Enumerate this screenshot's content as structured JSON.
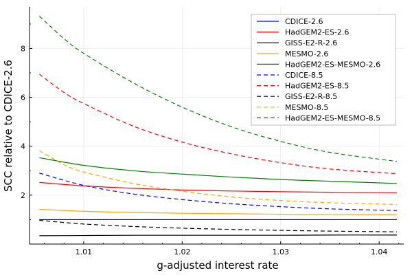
{
  "chart_data": {
    "type": "line",
    "xlabel": "g-adjusted interest rate",
    "ylabel": "SCC relative to CDICE-2.6",
    "xlim": [
      1.0045,
      1.0425
    ],
    "ylim": [
      0.0,
      9.7
    ],
    "x_ticks": [
      1.01,
      1.02,
      1.03,
      1.04
    ],
    "x_tick_labels": [
      "1.01",
      "1.02",
      "1.03",
      "1.04"
    ],
    "x_minor_ticks": [
      1.006,
      1.008,
      1.012,
      1.014,
      1.016,
      1.018,
      1.022,
      1.024,
      1.026,
      1.028,
      1.032,
      1.034,
      1.036,
      1.038,
      1.042
    ],
    "y_ticks": [
      2,
      4,
      6,
      8
    ],
    "y_tick_labels": [
      "2",
      "4",
      "6",
      "8"
    ],
    "y_minor_ticks": [
      1,
      3,
      5,
      7,
      9
    ],
    "grid": true,
    "legend_position": "top-right",
    "series": [
      {
        "name": "CDICE-2.6",
        "color": "#0000ff",
        "dash": "solid",
        "x": [
          1.0055,
          1.01,
          1.015,
          1.02,
          1.025,
          1.03,
          1.035,
          1.0418
        ],
        "y": [
          1.0,
          1.0,
          1.0,
          1.0,
          1.0,
          1.0,
          1.0,
          1.0
        ]
      },
      {
        "name": "HadGEM2-ES-2.6",
        "color": "#ff0000",
        "dash": "solid",
        "x": [
          1.0055,
          1.01,
          1.015,
          1.02,
          1.025,
          1.03,
          1.035,
          1.0418
        ],
        "y": [
          2.52,
          2.38,
          2.28,
          2.21,
          2.17,
          2.14,
          2.12,
          2.1
        ]
      },
      {
        "name": "GISS-E2-R-2.6",
        "color": "#000000",
        "dash": "solid",
        "x": [
          1.0055,
          1.01,
          1.015,
          1.02,
          1.025,
          1.03,
          1.035,
          1.0418
        ],
        "y": [
          0.34,
          0.35,
          0.36,
          0.36,
          0.36,
          0.36,
          0.37,
          0.37
        ]
      },
      {
        "name": "MESMO-2.6",
        "color": "#ffa500",
        "dash": "solid",
        "x": [
          1.0055,
          1.01,
          1.015,
          1.02,
          1.025,
          1.03,
          1.035,
          1.0418
        ],
        "y": [
          1.42,
          1.34,
          1.29,
          1.26,
          1.24,
          1.22,
          1.21,
          1.2
        ]
      },
      {
        "name": "HadGEM2-ES-MESMO-2.6",
        "color": "#008000",
        "dash": "solid",
        "x": [
          1.0055,
          1.01,
          1.015,
          1.02,
          1.025,
          1.03,
          1.035,
          1.0418
        ],
        "y": [
          3.53,
          3.22,
          3.0,
          2.86,
          2.74,
          2.64,
          2.57,
          2.48
        ]
      },
      {
        "name": "CDICE-8.5",
        "color": "#0000ff",
        "dash": "dashed",
        "x": [
          1.0055,
          1.01,
          1.015,
          1.02,
          1.025,
          1.03,
          1.035,
          1.0418
        ],
        "y": [
          2.9,
          2.4,
          2.05,
          1.82,
          1.65,
          1.53,
          1.44,
          1.37
        ]
      },
      {
        "name": "HadGEM2-ES-8.5",
        "color": "#ff0000",
        "dash": "dashed",
        "x": [
          1.0055,
          1.008,
          1.01,
          1.015,
          1.02,
          1.025,
          1.03,
          1.035,
          1.0418
        ],
        "y": [
          6.95,
          6.2,
          5.75,
          4.83,
          4.17,
          3.69,
          3.33,
          3.07,
          2.88
        ]
      },
      {
        "name": "GISS-E2-R-8.5",
        "color": "#000000",
        "dash": "dashed",
        "x": [
          1.0055,
          1.01,
          1.015,
          1.02,
          1.025,
          1.03,
          1.035,
          1.0418
        ],
        "y": [
          0.97,
          0.82,
          0.72,
          0.65,
          0.6,
          0.56,
          0.53,
          0.5
        ]
      },
      {
        "name": "MESMO-8.5",
        "color": "#ffa500",
        "dash": "dashed",
        "x": [
          1.0055,
          1.008,
          1.01,
          1.015,
          1.02,
          1.025,
          1.03,
          1.035,
          1.0418
        ],
        "y": [
          3.82,
          3.25,
          2.95,
          2.48,
          2.16,
          1.93,
          1.78,
          1.69,
          1.62
        ]
      },
      {
        "name": "HadGEM2-ES-MESMO-8.5",
        "color": "#008000",
        "dash": "dashed",
        "x": [
          1.0055,
          1.008,
          1.01,
          1.015,
          1.02,
          1.025,
          1.03,
          1.035,
          1.0418
        ],
        "y": [
          9.32,
          8.4,
          7.8,
          6.6,
          5.6,
          4.8,
          4.2,
          3.75,
          3.38
        ]
      }
    ]
  }
}
